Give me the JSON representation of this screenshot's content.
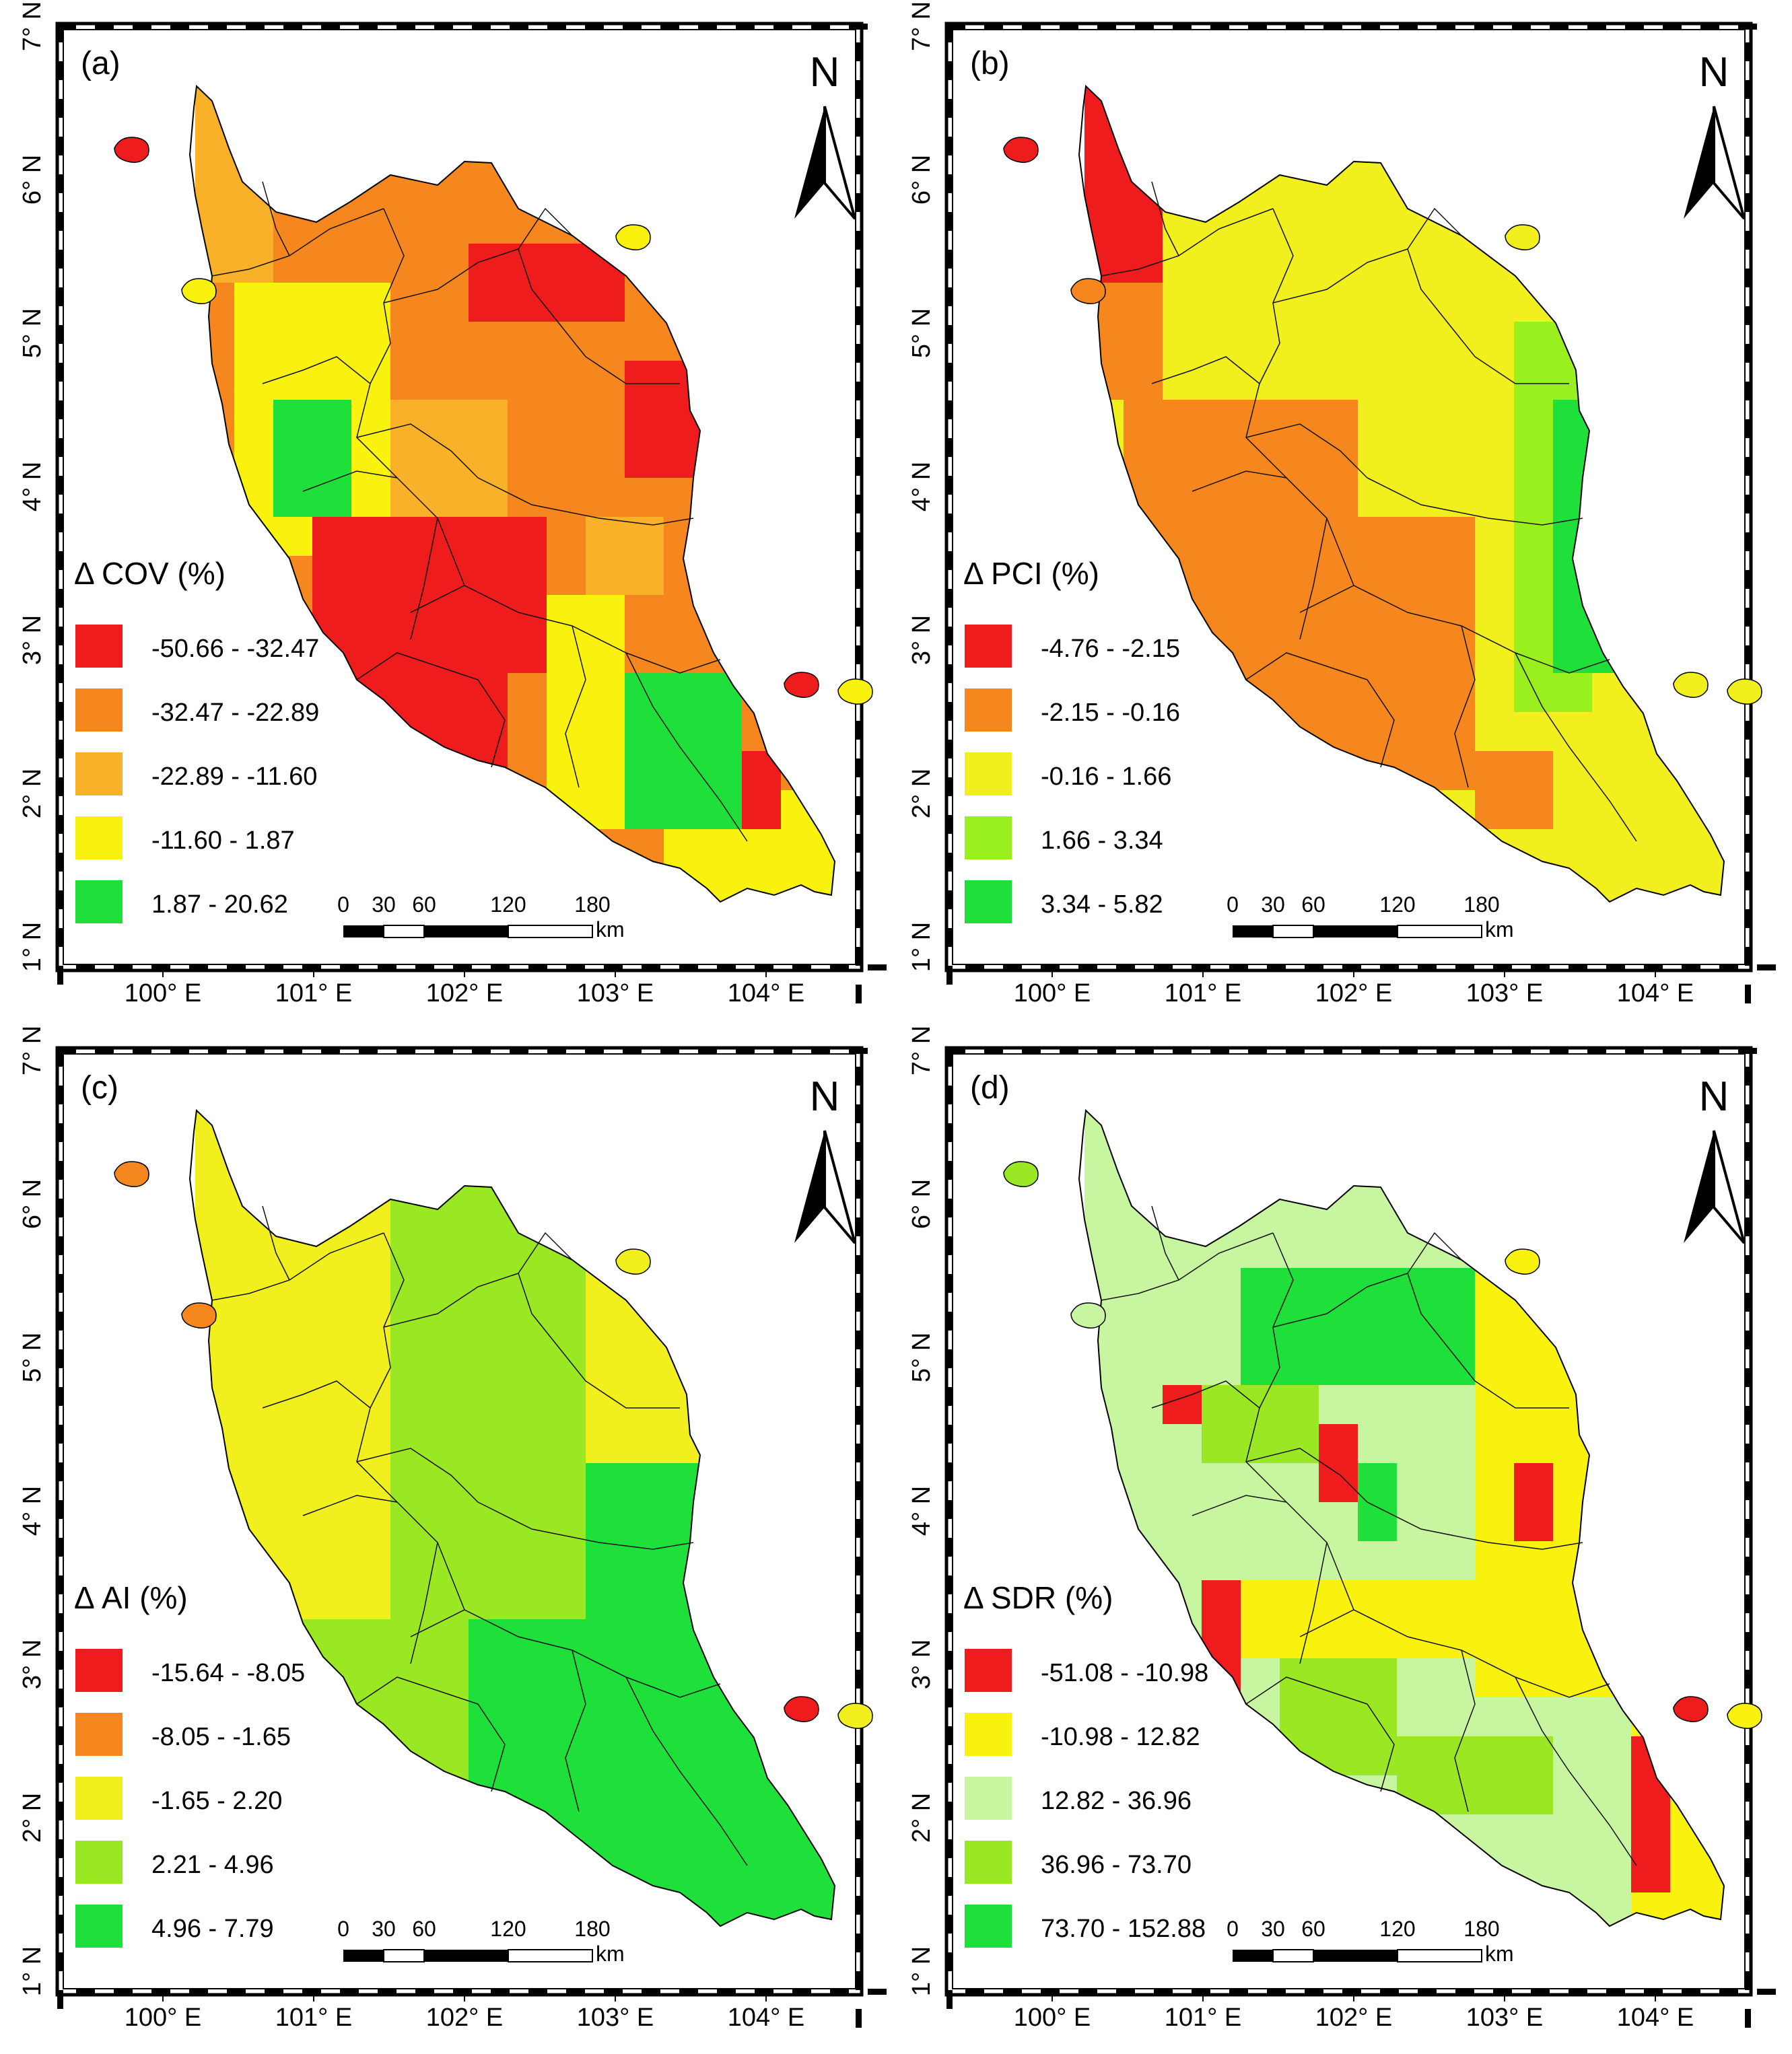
{
  "figure": {
    "lon_ticks": [
      "100° E",
      "101° E",
      "102° E",
      "103° E",
      "104° E"
    ],
    "lat_ticks": [
      "1° N",
      "2° N",
      "3° N",
      "4° N",
      "5° N",
      "6° N",
      "7° N"
    ],
    "north_label": "N",
    "scale": {
      "ticks": [
        "0",
        "30",
        "60",
        "120",
        "180"
      ],
      "unit": "km"
    }
  },
  "panels": [
    {
      "id": "a",
      "label": "(a)",
      "legend_title": "Δ COV (%)",
      "classes": [
        {
          "range": "-50.66 - -32.47",
          "color": "#ee1c1c"
        },
        {
          "range": "-32.47 - -22.89",
          "color": "#f6871f"
        },
        {
          "range": "-22.89 - -11.60",
          "color": "#f8b128"
        },
        {
          "range": "-11.60 - 1.87",
          "color": "#f8f20e"
        },
        {
          "range": "1.87 - 20.62",
          "color": "#1fe03a"
        }
      ]
    },
    {
      "id": "b",
      "label": "(b)",
      "legend_title": "Δ PCI (%)",
      "classes": [
        {
          "range": "-4.76 - -2.15",
          "color": "#ee1c1c"
        },
        {
          "range": "-2.15 - -0.16",
          "color": "#f6871f"
        },
        {
          "range": "-0.16 - 1.66",
          "color": "#f2ef1e"
        },
        {
          "range": "1.66 - 3.34",
          "color": "#9af01e"
        },
        {
          "range": "3.34 - 5.82",
          "color": "#1fe03a"
        }
      ]
    },
    {
      "id": "c",
      "label": "(c)",
      "legend_title": "Δ AI (%)",
      "classes": [
        {
          "range": "-15.64 - -8.05",
          "color": "#ee1c1c"
        },
        {
          "range": "-8.05 - -1.65",
          "color": "#f6871f"
        },
        {
          "range": "-1.65 - 2.20",
          "color": "#f2ef1e"
        },
        {
          "range": "2.21 - 4.96",
          "color": "#9ae824"
        },
        {
          "range": "4.96 - 7.79",
          "color": "#1fe03a"
        }
      ]
    },
    {
      "id": "d",
      "label": "(d)",
      "legend_title": "Δ SDR (%)",
      "classes": [
        {
          "range": "-51.08 - -10.98",
          "color": "#ee1c1c"
        },
        {
          "range": "-10.98 - 12.82",
          "color": "#f8f20e"
        },
        {
          "range": "12.82 - 36.96",
          "color": "#c8f5a0"
        },
        {
          "range": "36.96 - 73.70",
          "color": "#9ae824"
        },
        {
          "range": "73.70 - 152.88",
          "color": "#1fe03a"
        }
      ]
    }
  ]
}
